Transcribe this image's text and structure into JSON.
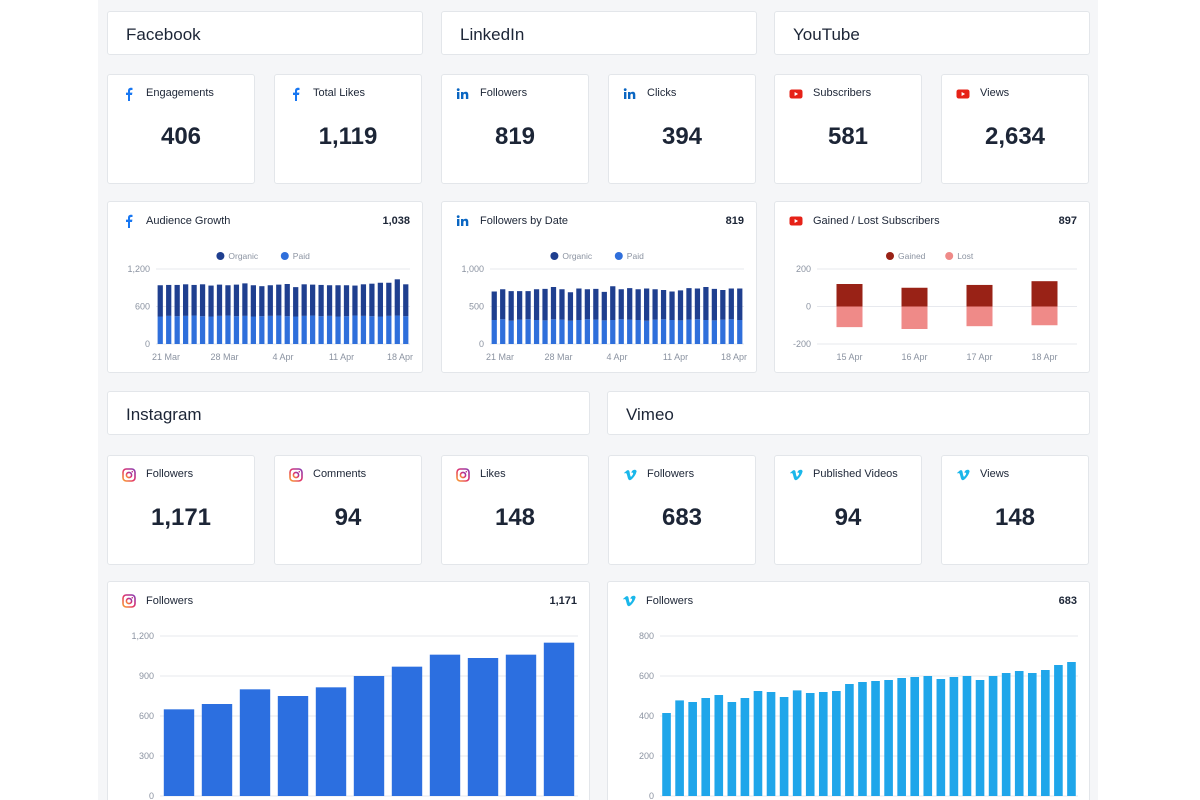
{
  "colors": {
    "facebook": "#1877f2",
    "linkedin": "#0a66c2",
    "youtube": "#e62117",
    "vimeo": "#1ab7ea",
    "organic": "#1f3f8f",
    "paid": "#2f6fdb",
    "gained": "#992216",
    "lost": "#ef8a88",
    "instagram_bar": "#2c6fe0",
    "vimeo_bar": "#1fa6ea",
    "grid": "#e7e9ee",
    "axis_text": "#8b93a1"
  },
  "sections": {
    "facebook": "Facebook",
    "linkedin": "LinkedIn",
    "youtube": "YouTube",
    "instagram": "Instagram",
    "vimeo": "Vimeo"
  },
  "kpis_top": [
    {
      "icon": "facebook-icon",
      "label": "Engagements",
      "value": "406"
    },
    {
      "icon": "facebook-icon",
      "label": "Total Likes",
      "value": "1,119"
    },
    {
      "icon": "linkedin-icon",
      "label": "Followers",
      "value": "819"
    },
    {
      "icon": "linkedin-icon",
      "label": "Clicks",
      "value": "394"
    },
    {
      "icon": "youtube-icon",
      "label": "Subscribers",
      "value": "581"
    },
    {
      "icon": "youtube-icon",
      "label": "Views",
      "value": "2,634"
    }
  ],
  "kpis_bottom": [
    {
      "icon": "instagram-icon",
      "label": "Followers",
      "value": "1,171"
    },
    {
      "icon": "instagram-icon",
      "label": "Comments",
      "value": "94"
    },
    {
      "icon": "instagram-icon",
      "label": "Likes",
      "value": "148"
    },
    {
      "icon": "vimeo-icon",
      "label": "Followers",
      "value": "683"
    },
    {
      "icon": "vimeo-icon",
      "label": "Published Videos",
      "value": "94"
    },
    {
      "icon": "vimeo-icon",
      "label": "Views",
      "value": "148"
    }
  ],
  "charts": {
    "fb": {
      "title": "Audience Growth",
      "total": "1,038"
    },
    "li": {
      "title": "Followers by Date",
      "total": "819"
    },
    "yt": {
      "title": "Gained / Lost Subscribers",
      "total": "897"
    },
    "ig": {
      "title": "Followers",
      "total": "1,171"
    },
    "vm": {
      "title": "Followers",
      "total": "683"
    }
  },
  "chart_data": [
    {
      "id": "fb",
      "type": "bar",
      "stacked": true,
      "legend": [
        "Organic",
        "Paid"
      ],
      "y_ticks": [
        "0",
        "600",
        "1,200"
      ],
      "ylim": [
        0,
        1200
      ],
      "x_ticks": [
        "21 Mar",
        "28 Mar",
        "4 Apr",
        "11 Apr",
        "18 Apr"
      ],
      "series": [
        {
          "name": "Paid",
          "values": [
            440,
            450,
            445,
            450,
            455,
            445,
            440,
            450,
            455,
            445,
            450,
            440,
            445,
            450,
            455,
            445,
            440,
            450,
            455,
            445,
            450,
            440,
            445,
            455,
            450,
            445,
            440,
            450,
            455,
            445
          ]
        },
        {
          "name": "Organic",
          "values": [
            500,
            495,
            500,
            505,
            490,
            510,
            495,
            500,
            485,
            505,
            520,
            500,
            480,
            490,
            495,
            515,
            470,
            505,
            495,
            500,
            490,
            500,
            495,
            480,
            505,
            520,
            540,
            530,
            580,
            510
          ]
        }
      ]
    },
    {
      "id": "li",
      "type": "bar",
      "stacked": true,
      "legend": [
        "Organic",
        "Paid"
      ],
      "y_ticks": [
        "0",
        "500",
        "1,000"
      ],
      "ylim": [
        0,
        1000
      ],
      "x_ticks": [
        "21 Mar",
        "28 Mar",
        "4 Apr",
        "11 Apr",
        "18 Apr"
      ],
      "series": [
        {
          "name": "Paid",
          "values": [
            320,
            330,
            310,
            325,
            330,
            320,
            315,
            330,
            325,
            310,
            320,
            330,
            325,
            315,
            320,
            330,
            325,
            320,
            310,
            325,
            330,
            320,
            315,
            325,
            330,
            320,
            315,
            325,
            330,
            320
          ]
        },
        {
          "name": "Organic",
          "values": [
            380,
            400,
            395,
            380,
            375,
            410,
            420,
            430,
            405,
            380,
            420,
            400,
            410,
            380,
            450,
            400,
            420,
            410,
            430,
            405,
            390,
            380,
            400,
            420,
            410,
            440,
            420,
            395,
            410,
            420
          ]
        }
      ]
    },
    {
      "id": "yt",
      "type": "bar",
      "legend": [
        "Gained",
        "Lost"
      ],
      "y_ticks": [
        "-200",
        "0",
        "200"
      ],
      "ylim": [
        -200,
        200
      ],
      "categories": [
        "15 Apr",
        "16 Apr",
        "17 Apr",
        "18 Apr"
      ],
      "series": [
        {
          "name": "Gained",
          "values": [
            120,
            100,
            115,
            135
          ]
        },
        {
          "name": "Lost",
          "values": [
            -110,
            -120,
            -105,
            -100
          ]
        }
      ]
    },
    {
      "id": "ig",
      "type": "bar",
      "y_ticks": [
        "0",
        "300",
        "600",
        "900",
        "1,200"
      ],
      "ylim": [
        0,
        1200
      ],
      "series": [
        {
          "name": "Followers",
          "values": [
            650,
            690,
            800,
            750,
            815,
            900,
            970,
            1060,
            1035,
            1060,
            1150
          ]
        }
      ]
    },
    {
      "id": "vm",
      "type": "bar",
      "y_ticks": [
        "0",
        "200",
        "400",
        "600",
        "800"
      ],
      "ylim": [
        0,
        800
      ],
      "series": [
        {
          "name": "Followers",
          "values": [
            415,
            478,
            470,
            490,
            505,
            470,
            490,
            525,
            520,
            495,
            528,
            515,
            520,
            525,
            560,
            570,
            575,
            580,
            590,
            595,
            600,
            585,
            595,
            600,
            580,
            600,
            615,
            625,
            615,
            630,
            655,
            670
          ]
        }
      ]
    }
  ]
}
